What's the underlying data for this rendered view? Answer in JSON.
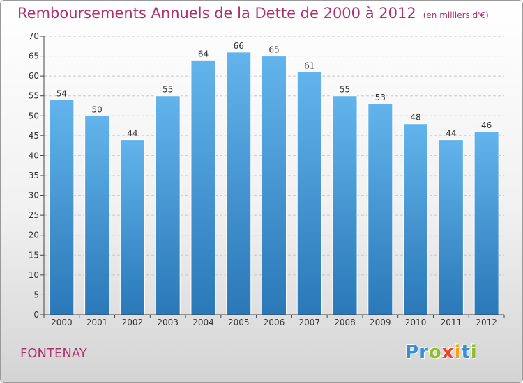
{
  "header": {
    "title": "Remboursements Annuels de la Dette de 2000 à 2012",
    "subtitle": "(en milliers d'€)"
  },
  "footer": {
    "commune": "FONTENAY",
    "logo_letters": [
      {
        "char": "P",
        "color": "#3a8fd1"
      },
      {
        "char": "r",
        "color": "#3a8fd1"
      },
      {
        "char": "o",
        "color": "#8bbf2a"
      },
      {
        "char": "x",
        "color": "#e8452c"
      },
      {
        "char": "i",
        "color": "#f2a31b"
      },
      {
        "char": "t",
        "color": "#3a8fd1"
      },
      {
        "char": "i",
        "color": "#8bbf2a"
      }
    ]
  },
  "colors": {
    "title": "#b0306e",
    "bar_top": "#63b4ec",
    "bar_bottom": "#2a78b8",
    "grid": "#c8c8c8",
    "axis": "#444444"
  },
  "chart_data": {
    "type": "bar",
    "title": "Remboursements Annuels de la Dette de 2000 à 2012",
    "subtitle": "(en milliers d'€)",
    "categories": [
      "2000",
      "2001",
      "2002",
      "2003",
      "2004",
      "2005",
      "2006",
      "2007",
      "2008",
      "2009",
      "2010",
      "2011",
      "2012"
    ],
    "values": [
      54,
      50,
      44,
      55,
      64,
      66,
      65,
      61,
      55,
      53,
      48,
      44,
      46
    ],
    "ylim": [
      0,
      70
    ],
    "yticks": [
      0,
      5,
      10,
      15,
      20,
      25,
      30,
      35,
      40,
      45,
      50,
      55,
      60,
      65,
      70
    ],
    "grid": true,
    "data_labels": true
  }
}
